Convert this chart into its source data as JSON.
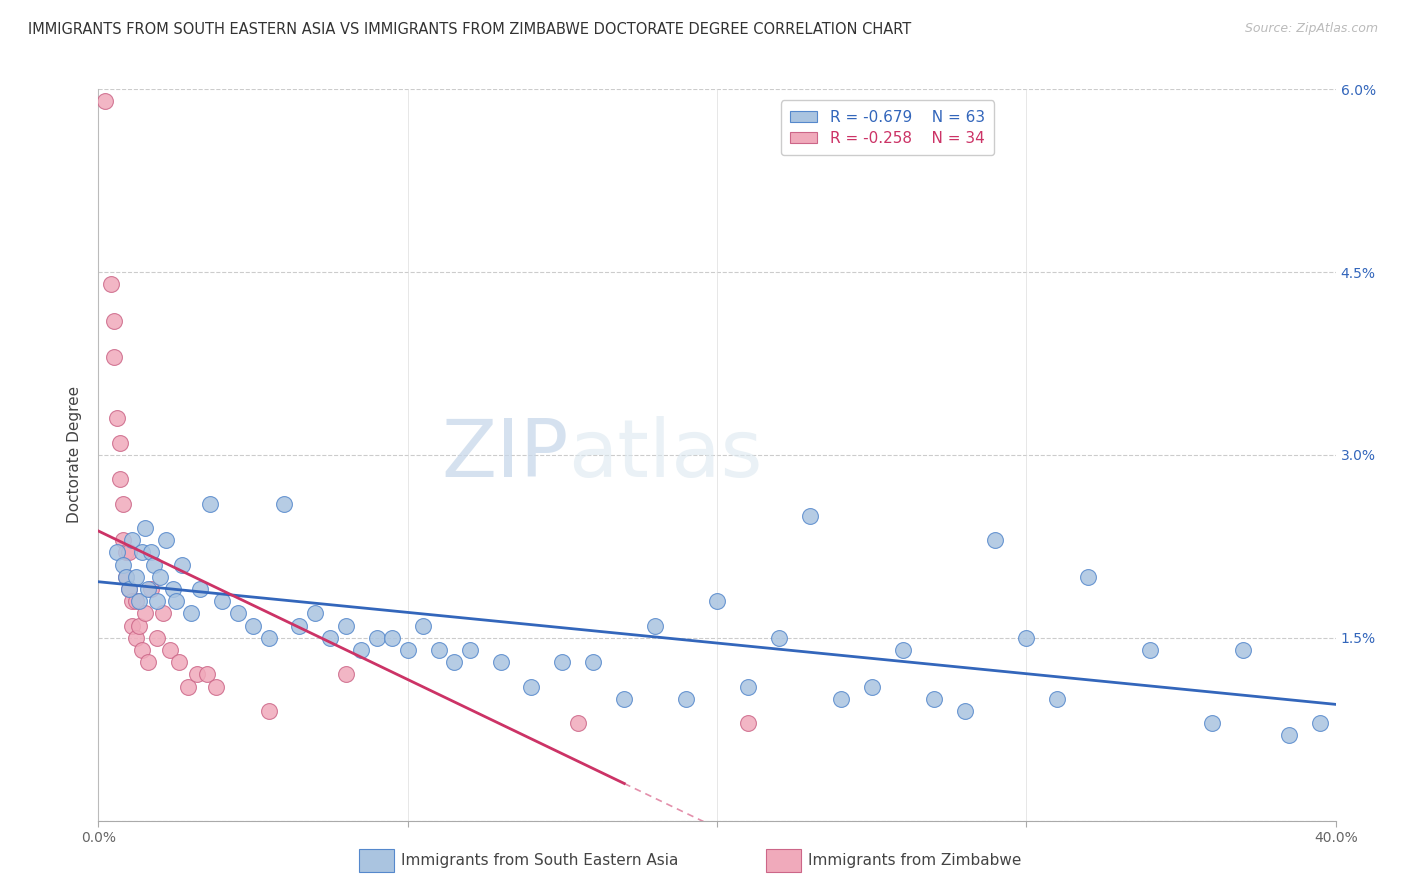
{
  "title": "IMMIGRANTS FROM SOUTH EASTERN ASIA VS IMMIGRANTS FROM ZIMBABWE DOCTORATE DEGREE CORRELATION CHART",
  "source": "Source: ZipAtlas.com",
  "ylabel": "Doctorate Degree",
  "xmin": 0.0,
  "xmax": 0.4,
  "ymin": 0.0,
  "ymax": 0.06,
  "legend_blue_r": "R = -0.679",
  "legend_blue_n": "N = 63",
  "legend_pink_r": "R = -0.258",
  "legend_pink_n": "N = 34",
  "legend_label_blue": "Immigrants from South Eastern Asia",
  "legend_label_pink": "Immigrants from Zimbabwe",
  "blue_color": "#aac4e0",
  "blue_edge_color": "#5588cc",
  "blue_line_color": "#3366bb",
  "pink_color": "#f0aabb",
  "pink_edge_color": "#cc6688",
  "pink_line_color": "#cc3366",
  "watermark_zip": "ZIP",
  "watermark_atlas": "atlas",
  "blue_scatter_x": [
    0.006,
    0.008,
    0.009,
    0.01,
    0.011,
    0.012,
    0.013,
    0.014,
    0.015,
    0.016,
    0.017,
    0.018,
    0.019,
    0.02,
    0.022,
    0.024,
    0.025,
    0.027,
    0.03,
    0.033,
    0.036,
    0.04,
    0.045,
    0.05,
    0.055,
    0.06,
    0.065,
    0.07,
    0.075,
    0.08,
    0.085,
    0.09,
    0.095,
    0.1,
    0.105,
    0.11,
    0.115,
    0.12,
    0.13,
    0.14,
    0.15,
    0.16,
    0.17,
    0.18,
    0.19,
    0.2,
    0.21,
    0.22,
    0.23,
    0.24,
    0.25,
    0.26,
    0.27,
    0.28,
    0.29,
    0.3,
    0.31,
    0.32,
    0.34,
    0.36,
    0.37,
    0.385,
    0.395
  ],
  "blue_scatter_y": [
    0.022,
    0.021,
    0.02,
    0.019,
    0.023,
    0.02,
    0.018,
    0.022,
    0.024,
    0.019,
    0.022,
    0.021,
    0.018,
    0.02,
    0.023,
    0.019,
    0.018,
    0.021,
    0.017,
    0.019,
    0.026,
    0.018,
    0.017,
    0.016,
    0.015,
    0.026,
    0.016,
    0.017,
    0.015,
    0.016,
    0.014,
    0.015,
    0.015,
    0.014,
    0.016,
    0.014,
    0.013,
    0.014,
    0.013,
    0.011,
    0.013,
    0.013,
    0.01,
    0.016,
    0.01,
    0.018,
    0.011,
    0.015,
    0.025,
    0.01,
    0.011,
    0.014,
    0.01,
    0.009,
    0.023,
    0.015,
    0.01,
    0.02,
    0.014,
    0.008,
    0.014,
    0.007,
    0.008
  ],
  "pink_scatter_x": [
    0.002,
    0.004,
    0.005,
    0.005,
    0.006,
    0.007,
    0.007,
    0.008,
    0.008,
    0.009,
    0.009,
    0.01,
    0.01,
    0.011,
    0.011,
    0.012,
    0.012,
    0.013,
    0.014,
    0.015,
    0.016,
    0.017,
    0.019,
    0.021,
    0.023,
    0.026,
    0.029,
    0.032,
    0.035,
    0.038,
    0.055,
    0.08,
    0.155,
    0.21
  ],
  "pink_scatter_y": [
    0.059,
    0.044,
    0.041,
    0.038,
    0.033,
    0.031,
    0.028,
    0.026,
    0.023,
    0.022,
    0.02,
    0.019,
    0.022,
    0.018,
    0.016,
    0.018,
    0.015,
    0.016,
    0.014,
    0.017,
    0.013,
    0.019,
    0.015,
    0.017,
    0.014,
    0.013,
    0.011,
    0.012,
    0.012,
    0.011,
    0.009,
    0.012,
    0.008,
    0.008
  ]
}
